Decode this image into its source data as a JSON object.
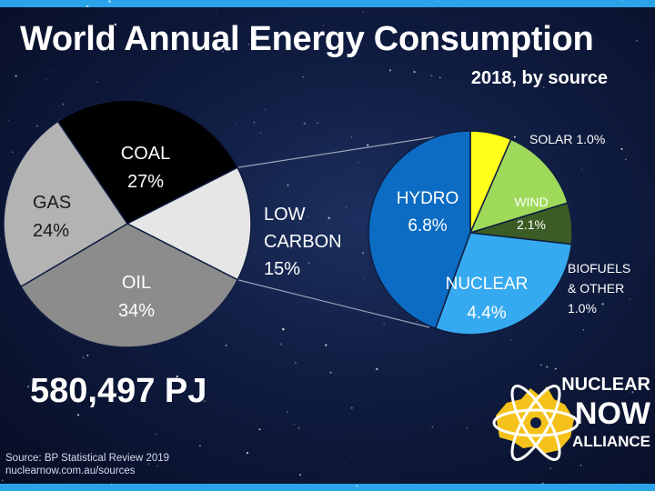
{
  "title": "World Annual Energy Consumption",
  "subtitle": "2018, by source",
  "total": "580,497 PJ",
  "source": {
    "line1": "Source: BP Statistical Review 2019",
    "line2": "nuclearnow.com.au/sources"
  },
  "logo": {
    "words": [
      "NUCLEAR",
      "NOW",
      "ALLIANCE"
    ]
  },
  "colors": {
    "frame": "#2ba3e8",
    "coal": "#000000",
    "oil": "#8c8c8c",
    "gas": "#b3b3b3",
    "low_carbon": "#e6e6e6",
    "hydro": "#0c6bc2",
    "nuclear": "#36aaf0",
    "solar": "#ffff1a",
    "wind": "#9ed95a",
    "biofuels": "#3b5c25",
    "logo_yellow": "#f5c21b"
  },
  "chart_data": [
    {
      "type": "pie",
      "name": "main",
      "slices": [
        {
          "label": "COAL",
          "value_label": "27%",
          "value": 27,
          "color": "#000000"
        },
        {
          "label": "LOW CARBON",
          "value_label": "15%",
          "value": 15,
          "color": "#e6e6e6"
        },
        {
          "label": "OIL",
          "value_label": "34%",
          "value": 34,
          "color": "#8c8c8c"
        },
        {
          "label": "GAS",
          "value_label": "24%",
          "value": 24,
          "color": "#b3b3b3"
        }
      ]
    },
    {
      "type": "pie",
      "name": "low_carbon_breakdown",
      "slices": [
        {
          "label": "SOLAR",
          "value_label": "1.0%",
          "value": 1.0,
          "color": "#ffff1a"
        },
        {
          "label": "WIND",
          "value_label": "2.1%",
          "value": 2.1,
          "color": "#9ed95a"
        },
        {
          "label": "BIOFUELS & OTHER",
          "value_label": "1.0%",
          "value": 1.0,
          "color": "#3b5c25"
        },
        {
          "label": "NUCLEAR",
          "value_label": "4.4%",
          "value": 4.4,
          "color": "#36aaf0"
        },
        {
          "label": "HYDRO",
          "value_label": "6.8%",
          "value": 6.8,
          "color": "#0c6bc2"
        }
      ]
    }
  ]
}
